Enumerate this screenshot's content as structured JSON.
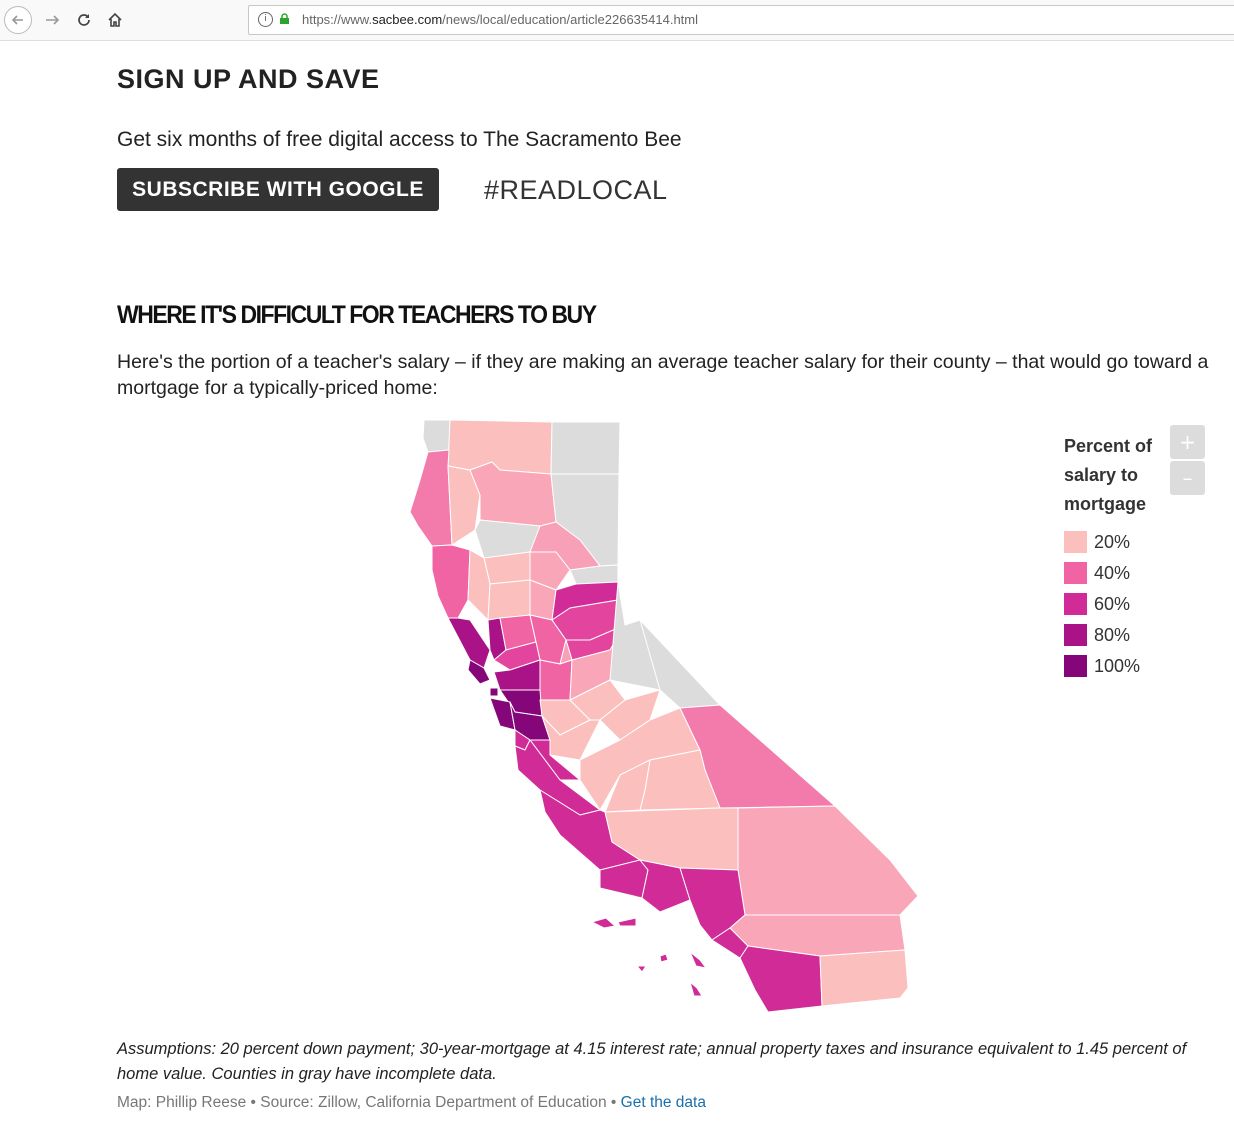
{
  "browser": {
    "url_prefix": "https://www.",
    "url_domain": "sacbee.com",
    "url_path": "/news/local/education/article226635414.html",
    "info_symbol": "i"
  },
  "promo": {
    "heading": "SIGN UP AND SAVE",
    "text": "Get six months of free digital access to The Sacramento Bee",
    "subscribe_label": "SUBSCRIBE WITH GOOGLE",
    "hashtag": "#READLOCAL"
  },
  "article": {
    "map_heading": "WHERE IT'S DIFFICULT FOR TEACHERS TO BUY",
    "intro": "Here's the portion of a teacher's salary – if they are making an average teacher salary for their county – that would go toward a mortgage for a typically-priced home:",
    "assumptions": "Assumptions: 20 percent down payment; 30-year-mortgage at 4.15 interest rate; annual property taxes and insurance equivalent to 1.45 percent of home value. Counties in gray have incomplete data.",
    "credit_text": "Map: Phillip Reese • Source: Zillow, California Department of Education • ",
    "data_link": "Get the data"
  },
  "map": {
    "legend_title": "Percent of salary to mortgage",
    "zoom_in": "+",
    "zoom_out": "–",
    "legend": [
      {
        "label": "20%",
        "color": "#fbbfbd"
      },
      {
        "label": "40%",
        "color": "#f064a4"
      },
      {
        "label": "60%",
        "color": "#d02b96"
      },
      {
        "label": "80%",
        "color": "#aa1387"
      },
      {
        "label": "100%",
        "color": "#850679"
      }
    ],
    "no_data_color": "#dcdcdc"
  }
}
